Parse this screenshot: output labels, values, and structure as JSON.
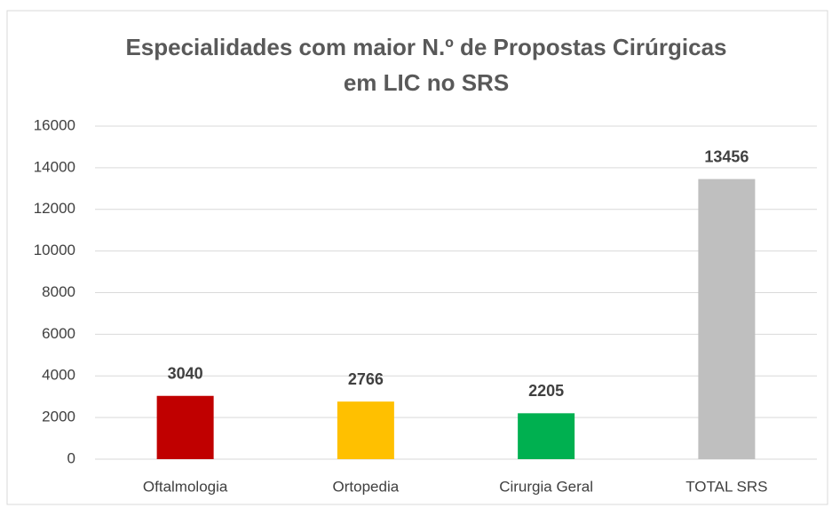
{
  "chart_data": {
    "type": "bar",
    "title": [
      "Especialidades com maior N.º de Propostas Cirúrgicas",
      "em LIC no SRS"
    ],
    "categories": [
      "Oftalmologia",
      "Ortopedia",
      "Cirurgia Geral",
      "TOTAL SRS"
    ],
    "values": [
      3040,
      2766,
      2205,
      13456
    ],
    "colors": [
      "#c00000",
      "#ffc000",
      "#00b050",
      "#bfbfbf"
    ],
    "ylim": [
      0,
      16000
    ],
    "yticks": [
      0,
      2000,
      4000,
      6000,
      8000,
      10000,
      12000,
      14000,
      16000
    ],
    "grid": true
  }
}
